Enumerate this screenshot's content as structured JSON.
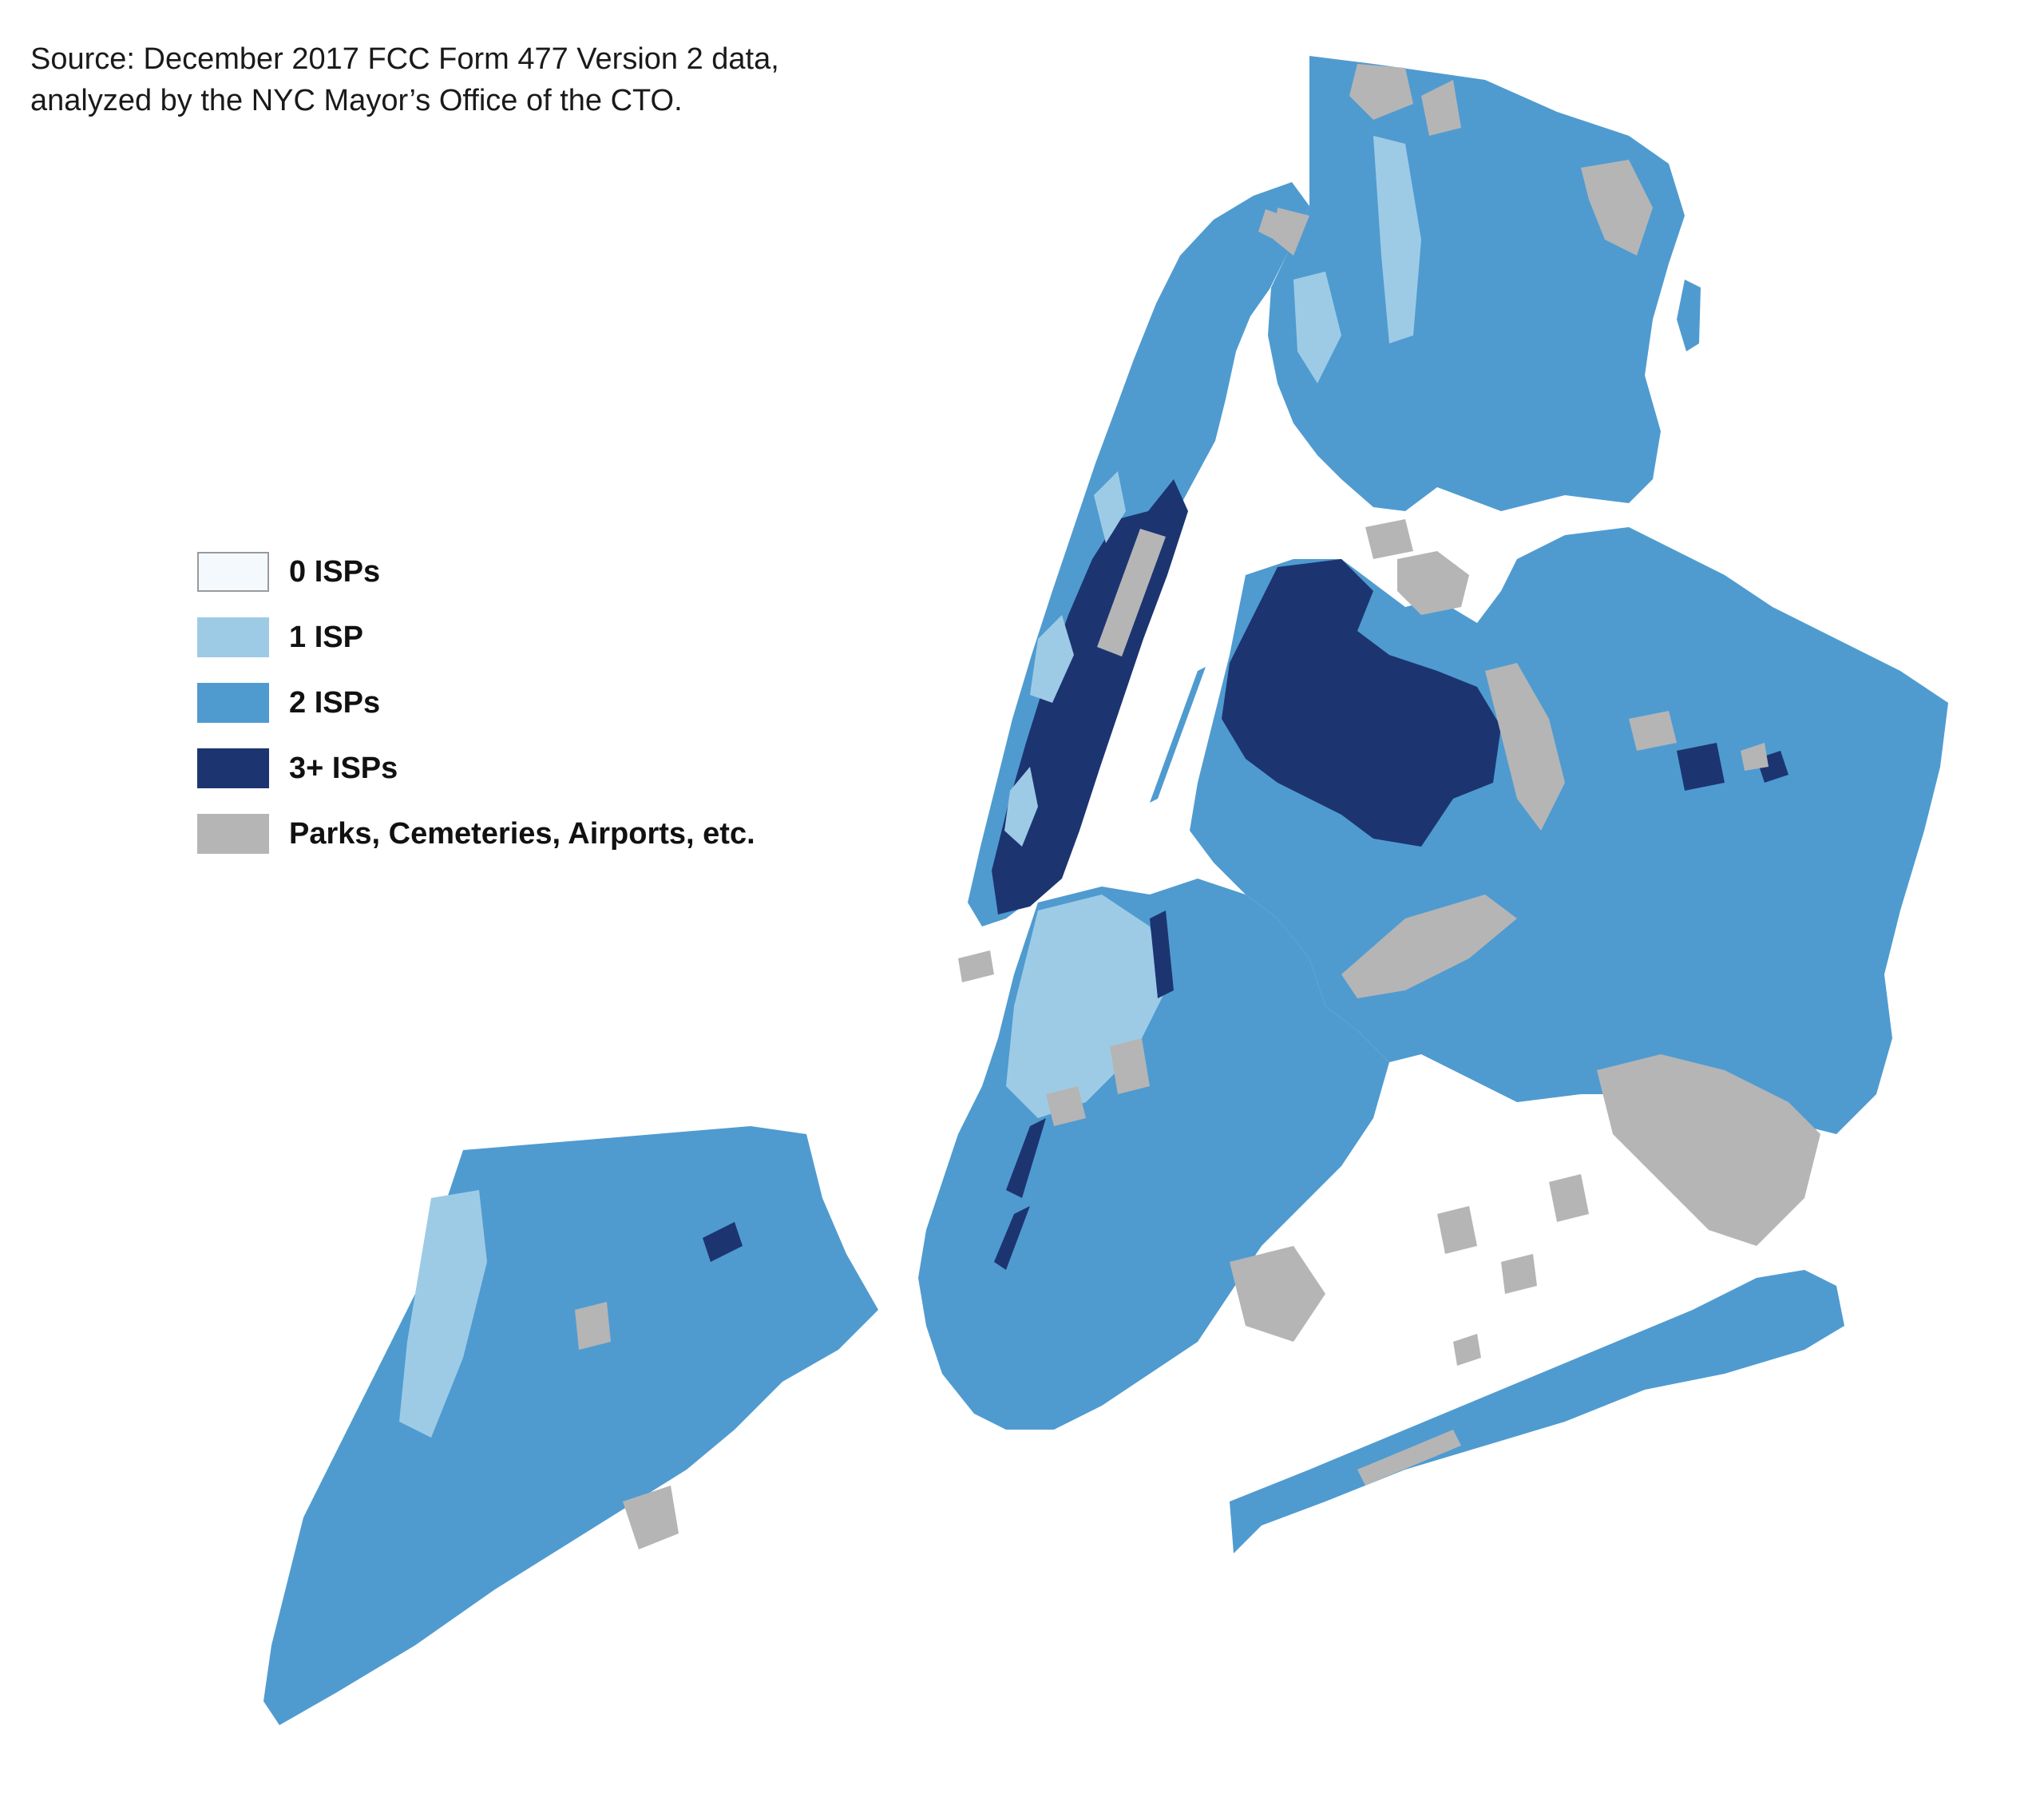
{
  "source": {
    "line1": "Source: December 2017 FCC Form 477 Version 2 data,",
    "line2": "analyzed by the NYC Mayor’s Office of the CTO."
  },
  "legend": [
    {
      "label": "0 ISPs",
      "color": "#f4f9fd",
      "border": "#9a9a9a"
    },
    {
      "label": "1 ISP",
      "color": "#9dcbe6"
    },
    {
      "label": "2 ISPs",
      "color": "#4f9bd0"
    },
    {
      "label": "3+ ISPs",
      "color": "#1c3571"
    },
    {
      "label": "Parks, Cemeteries, Airports, etc.",
      "color": "#b5b5b5"
    }
  ],
  "colors": {
    "none": "#f4f9fd",
    "one": "#9dcbe6",
    "two": "#4f9bd0",
    "three_plus": "#1c3571",
    "parks": "#b5b5b5",
    "water": "#ffffff"
  }
}
